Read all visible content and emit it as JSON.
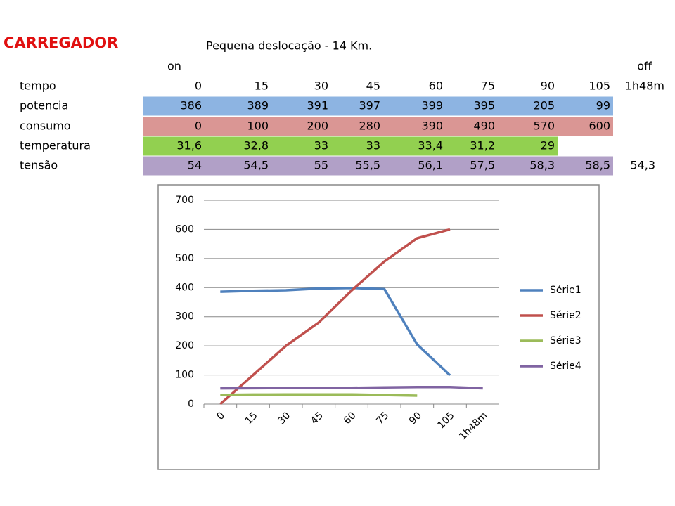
{
  "title": "CARREGADOR",
  "subtitle": "Pequena deslocação - 14 Km.",
  "table": {
    "top_labels": [
      "on",
      "off"
    ],
    "rows": [
      {
        "label": "tempo",
        "cells": [
          "0",
          "15",
          "30",
          "45",
          "60",
          "75",
          "90",
          "105",
          "1h48m"
        ]
      },
      {
        "label": "potencia",
        "color": "#8db4e2",
        "cells": [
          "386",
          "389",
          "391",
          "397",
          "399",
          "395",
          "205",
          "99"
        ]
      },
      {
        "label": "consumo",
        "color": "#da9694",
        "cells": [
          "0",
          "100",
          "200",
          "280",
          "390",
          "490",
          "570",
          "600"
        ]
      },
      {
        "label": "temperatura",
        "color": "#92d050",
        "cells": [
          "31,6",
          "32,8",
          "33",
          "33",
          "33,4",
          "31,2",
          "29"
        ]
      },
      {
        "label": "tensão",
        "color": "#b1a0c7",
        "cells": [
          "54",
          "54,5",
          "55",
          "55,5",
          "56,1",
          "57,5",
          "58,3",
          "58,5",
          "54,3"
        ]
      }
    ]
  },
  "chart_data": {
    "type": "line",
    "categories": [
      "0",
      "15",
      "30",
      "45",
      "60",
      "75",
      "90",
      "105",
      "1h48m"
    ],
    "series": [
      {
        "name": "Série1",
        "color": "#4f81bd",
        "values": [
          386,
          389,
          391,
          397,
          399,
          395,
          205,
          99,
          null
        ]
      },
      {
        "name": "Série2",
        "color": "#c0504d",
        "values": [
          0,
          100,
          200,
          280,
          390,
          490,
          570,
          600,
          null
        ]
      },
      {
        "name": "Série3",
        "color": "#9bbb59",
        "values": [
          31.6,
          32.8,
          33,
          33,
          33.4,
          31.2,
          29,
          null,
          null
        ]
      },
      {
        "name": "Série4",
        "color": "#8064a2",
        "values": [
          54,
          54.5,
          55,
          55.5,
          56.1,
          57.5,
          58.3,
          58.5,
          54.3
        ]
      }
    ],
    "ylim": [
      0,
      700
    ],
    "yticks": [
      0,
      100,
      200,
      300,
      400,
      500,
      600,
      700
    ],
    "grid": true,
    "legend": "right"
  }
}
